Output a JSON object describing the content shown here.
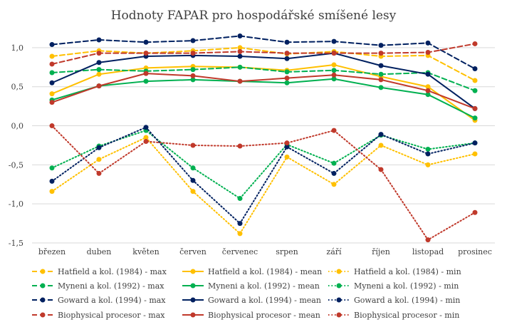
{
  "chart_data": {
    "type": "line",
    "title": "Hodnoty FAPAR pro hospodářské smíšené lesy",
    "xlabel": "",
    "ylabel": "",
    "ylim": [
      -1.5,
      1.2
    ],
    "yticks": [
      1.0,
      0.5,
      0.0,
      -0.5,
      -1.0,
      -1.5
    ],
    "ytick_labels": [
      "1,0",
      "0,5",
      "0,0",
      "-0,5",
      "-1,0",
      "-1,5"
    ],
    "grid": true,
    "legend_position": "bottom",
    "categories": [
      "březen",
      "duben",
      "květen",
      "červen",
      "červenec",
      "srpen",
      "září",
      "říjen",
      "listopad",
      "prosinec"
    ],
    "series": [
      {
        "name": "Hatfield a kol. (1984) - max",
        "color": "#FFC000",
        "style": "dashed",
        "values": [
          0.89,
          0.96,
          0.93,
          0.96,
          1.0,
          0.92,
          0.95,
          0.89,
          0.9,
          0.58
        ]
      },
      {
        "name": "Hatfield a kol. (1984) - mean",
        "color": "#FFC000",
        "style": "solid",
        "values": [
          0.41,
          0.66,
          0.74,
          0.76,
          0.75,
          0.71,
          0.78,
          0.63,
          0.5,
          0.07
        ]
      },
      {
        "name": "Hatfield a kol. (1984) - min",
        "color": "#FFC000",
        "style": "dotted",
        "values": [
          -0.84,
          -0.43,
          -0.15,
          -0.84,
          -1.38,
          -0.4,
          -0.75,
          -0.25,
          -0.5,
          -0.36
        ]
      },
      {
        "name": "Myneni a kol. (1992) - max",
        "color": "#00B050",
        "style": "dashed",
        "values": [
          0.68,
          0.72,
          0.7,
          0.72,
          0.75,
          0.69,
          0.71,
          0.66,
          0.68,
          0.45
        ]
      },
      {
        "name": "Myneni a kol. (1992) - mean",
        "color": "#00B050",
        "style": "solid",
        "values": [
          0.33,
          0.51,
          0.57,
          0.59,
          0.57,
          0.55,
          0.6,
          0.49,
          0.4,
          0.1
        ]
      },
      {
        "name": "Myneni a kol. (1992) - min",
        "color": "#00B050",
        "style": "dotted",
        "values": [
          -0.54,
          -0.26,
          -0.06,
          -0.54,
          -0.93,
          -0.24,
          -0.48,
          -0.12,
          -0.3,
          -0.22
        ]
      },
      {
        "name": "Goward a kol. (1994) - max",
        "color": "#002060",
        "style": "dashed",
        "values": [
          1.04,
          1.1,
          1.07,
          1.09,
          1.15,
          1.07,
          1.08,
          1.03,
          1.06,
          0.73
        ]
      },
      {
        "name": "Goward a kol. (1994) - mean",
        "color": "#002060",
        "style": "solid",
        "values": [
          0.55,
          0.81,
          0.89,
          0.9,
          0.89,
          0.86,
          0.93,
          0.77,
          0.66,
          0.22
        ]
      },
      {
        "name": "Goward a kol. (1994) - min",
        "color": "#002060",
        "style": "dotted",
        "values": [
          -0.71,
          -0.28,
          -0.02,
          -0.7,
          -1.25,
          -0.27,
          -0.61,
          -0.11,
          -0.36,
          -0.22
        ]
      },
      {
        "name": "Biophysical procesor - max",
        "color": "#C0392B",
        "style": "dashed",
        "values": [
          0.79,
          0.93,
          0.93,
          0.93,
          0.95,
          0.93,
          0.93,
          0.93,
          0.94,
          1.05
        ]
      },
      {
        "name": "Biophysical procesor - mean",
        "color": "#C0392B",
        "style": "solid",
        "values": [
          0.3,
          0.51,
          0.67,
          0.64,
          0.57,
          0.61,
          0.65,
          0.59,
          0.45,
          0.22
        ]
      },
      {
        "name": "Biophysical procesor - min",
        "color": "#C0392B",
        "style": "dotted",
        "values": [
          0.0,
          -0.61,
          -0.2,
          -0.25,
          -0.26,
          -0.22,
          -0.06,
          -0.56,
          -1.46,
          -1.11
        ]
      }
    ]
  }
}
